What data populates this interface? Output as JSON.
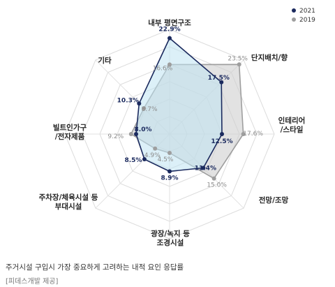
{
  "chart_data": {
    "type": "radar",
    "categories": [
      "내부 평면구조",
      "단지배치/향",
      "인테리어\n/스타일",
      "전망/조망",
      "광장/녹지 등\n조경시설",
      "주차장/체육시설 등\n부대시설",
      "빌트인가구\n/전자제품",
      "기타"
    ],
    "series": [
      {
        "name": "2021",
        "color": "#1b2a5e",
        "fill": "#bfe3f2",
        "values": [
          22.9,
          17.5,
          12.5,
          11.4,
          8.9,
          8.5,
          8.0,
          10.3
        ],
        "labels": [
          "22.9%",
          "17.5%",
          "12.5%",
          "11.4%",
          "8.9%",
          "8.5%",
          "8.0%",
          "10.3%"
        ]
      },
      {
        "name": "2019",
        "color": "#9e9e9e",
        "fill": "#cfcfcf",
        "values": [
          16.6,
          23.5,
          17.6,
          15.0,
          4.5,
          4.9,
          9.2,
          8.7
        ],
        "labels": [
          "16.6%",
          "23.5%",
          "17.6%",
          "15.0%",
          "4.5%",
          "4.9%",
          "9.2%",
          "8.7%"
        ]
      }
    ],
    "rmax": 25,
    "rings": 6,
    "legend_position": "top-right"
  },
  "caption": "주거시설 구입시 가장 중요하게 고려하는 내적 요인 응답률",
  "source": "[피데스개발 제공]"
}
